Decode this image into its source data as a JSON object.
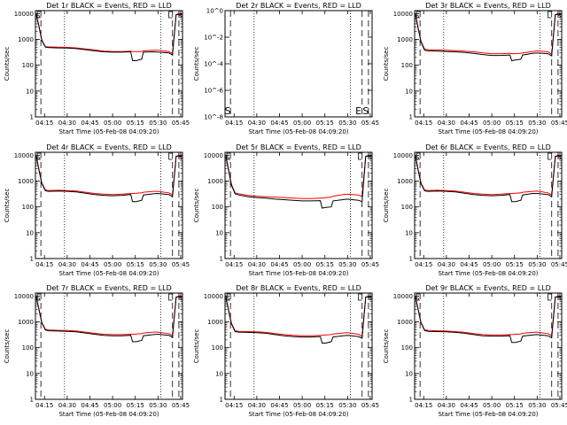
{
  "xlabel": "Start Time (05-Feb-08 04:09:20)",
  "ylabel": "Counts/sec",
  "series_legend": {
    "black": "Events",
    "red": "LLD"
  },
  "colors": {
    "events": "#000000",
    "lld": "#ff0000",
    "axis": "#000000"
  },
  "annotation_labels": {
    "S": "S",
    "E": "E"
  },
  "x_range_min": [
    4.15,
    5.77
  ],
  "x_tick_labels": [
    "04:15",
    "04:30",
    "04:45",
    "05:00",
    "05:15",
    "05:30",
    "05:45"
  ],
  "x_tick_values_min": [
    4.25,
    4.5,
    4.75,
    5.0,
    5.25,
    5.5,
    5.75
  ],
  "y_tick_labels_log": [
    "1",
    "10",
    "100",
    "1000",
    "10000"
  ],
  "y_tick_values_log": [
    1,
    10,
    100,
    1000,
    10000
  ],
  "y_tick_labels_zero": [
    "10^-8",
    "10^-6",
    "10^-4",
    "10^-2",
    "10^0"
  ],
  "y_tick_values_zero": [
    1e-08,
    1e-06,
    0.0001,
    0.01,
    1
  ],
  "marker_lines_min": {
    "dashed": [
      4.21,
      5.66,
      5.73
    ],
    "dotted": [
      4.47,
      5.53
    ]
  },
  "chart_data": [
    {
      "type": "line",
      "title": "Det 1r BLACK = Events, RED = LLD",
      "ylim": [
        1,
        13000
      ],
      "scale": "log",
      "x": [
        4.16,
        4.19,
        4.22,
        4.26,
        4.3,
        4.4,
        4.5,
        4.6,
        4.7,
        4.8,
        4.9,
        5.0,
        5.1,
        5.2,
        5.22,
        5.26,
        5.32,
        5.34,
        5.45,
        5.5,
        5.62,
        5.66,
        5.7,
        5.73,
        5.76
      ],
      "series": [
        {
          "name": "Events",
          "values": [
            9000,
            3000,
            900,
            500,
            480,
            470,
            460,
            440,
            400,
            360,
            330,
            320,
            320,
            330,
            150,
            150,
            170,
            320,
            330,
            320,
            300,
            250,
            9000,
            9500,
            9000
          ]
        },
        {
          "name": "LLD",
          "values": [
            9200,
            3200,
            950,
            520,
            510,
            500,
            490,
            470,
            430,
            390,
            350,
            340,
            340,
            350,
            340,
            340,
            340,
            360,
            380,
            380,
            340,
            280,
            9200,
            9800,
            9200
          ]
        }
      ]
    },
    {
      "type": "line",
      "title": "Det 2r BLACK = Events, RED = LLD",
      "ylim": [
        1e-08,
        1
      ],
      "scale": "log",
      "x": [],
      "series": [
        {
          "name": "Events",
          "values": []
        },
        {
          "name": "LLD",
          "values": []
        }
      ]
    },
    {
      "type": "line",
      "title": "Det 3r BLACK = Events, RED = LLD",
      "ylim": [
        1,
        13000
      ],
      "scale": "log",
      "x": [
        4.16,
        4.19,
        4.22,
        4.26,
        4.3,
        4.4,
        4.5,
        4.6,
        4.7,
        4.8,
        4.9,
        5.0,
        5.1,
        5.2,
        5.22,
        5.26,
        5.32,
        5.34,
        5.45,
        5.5,
        5.62,
        5.66,
        5.7,
        5.73,
        5.76
      ],
      "series": [
        {
          "name": "Events",
          "values": [
            9000,
            2500,
            800,
            380,
            360,
            350,
            340,
            330,
            310,
            290,
            260,
            240,
            240,
            250,
            150,
            160,
            170,
            250,
            290,
            300,
            280,
            230,
            9000,
            9500,
            9000
          ]
        },
        {
          "name": "LLD",
          "values": [
            9200,
            2700,
            850,
            420,
            400,
            390,
            380,
            370,
            350,
            330,
            300,
            280,
            280,
            290,
            280,
            280,
            290,
            300,
            340,
            360,
            330,
            270,
            9200,
            9800,
            9200
          ]
        }
      ]
    },
    {
      "type": "line",
      "title": "Det 4r BLACK = Events, RED = LLD",
      "ylim": [
        1,
        13000
      ],
      "scale": "log",
      "x": [
        4.16,
        4.19,
        4.22,
        4.26,
        4.3,
        4.4,
        4.5,
        4.6,
        4.7,
        4.8,
        4.9,
        5.0,
        5.1,
        5.2,
        5.22,
        5.26,
        5.32,
        5.34,
        5.45,
        5.5,
        5.62,
        5.66,
        5.7,
        5.73,
        5.76
      ],
      "series": [
        {
          "name": "Events",
          "values": [
            9000,
            2500,
            800,
            420,
            400,
            410,
            400,
            380,
            340,
            300,
            280,
            270,
            280,
            300,
            160,
            160,
            180,
            290,
            320,
            330,
            300,
            250,
            9000,
            9500,
            9000
          ]
        },
        {
          "name": "LLD",
          "values": [
            9200,
            2700,
            850,
            450,
            430,
            440,
            430,
            410,
            370,
            330,
            310,
            300,
            310,
            330,
            330,
            340,
            350,
            370,
            400,
            400,
            350,
            290,
            9200,
            9800,
            9200
          ]
        }
      ]
    },
    {
      "type": "line",
      "title": "Det 5r BLACK = Events, RED = LLD",
      "ylim": [
        1,
        13000
      ],
      "scale": "log",
      "x": [
        4.16,
        4.19,
        4.22,
        4.26,
        4.3,
        4.4,
        4.5,
        4.6,
        4.7,
        4.8,
        4.9,
        5.0,
        5.1,
        5.2,
        5.22,
        5.26,
        5.32,
        5.34,
        5.45,
        5.5,
        5.62,
        5.66,
        5.7,
        5.73,
        5.76
      ],
      "series": [
        {
          "name": "Events",
          "values": [
            9000,
            2500,
            700,
            320,
            290,
            250,
            230,
            220,
            200,
            190,
            180,
            170,
            170,
            175,
            90,
            95,
            100,
            170,
            190,
            200,
            180,
            160,
            9000,
            9500,
            9000
          ]
        },
        {
          "name": "LLD",
          "values": [
            9200,
            2700,
            750,
            350,
            320,
            280,
            260,
            250,
            240,
            230,
            220,
            210,
            210,
            220,
            220,
            230,
            240,
            260,
            300,
            310,
            290,
            250,
            9200,
            9800,
            9200
          ]
        }
      ]
    },
    {
      "type": "line",
      "title": "Det 6r BLACK = Events, RED = LLD",
      "ylim": [
        1,
        13000
      ],
      "scale": "log",
      "x": [
        4.16,
        4.19,
        4.22,
        4.26,
        4.3,
        4.4,
        4.5,
        4.6,
        4.7,
        4.8,
        4.9,
        5.0,
        5.1,
        5.2,
        5.22,
        5.26,
        5.32,
        5.34,
        5.45,
        5.5,
        5.62,
        5.66,
        5.7,
        5.73,
        5.76
      ],
      "series": [
        {
          "name": "Events",
          "values": [
            9000,
            2500,
            800,
            420,
            400,
            410,
            400,
            380,
            340,
            300,
            280,
            270,
            280,
            300,
            160,
            160,
            180,
            290,
            330,
            330,
            300,
            250,
            9000,
            9500,
            9000
          ]
        },
        {
          "name": "LLD",
          "values": [
            9200,
            2700,
            850,
            450,
            430,
            440,
            430,
            410,
            370,
            330,
            310,
            300,
            310,
            330,
            330,
            340,
            350,
            370,
            400,
            410,
            350,
            290,
            9200,
            9800,
            9200
          ]
        }
      ]
    },
    {
      "type": "line",
      "title": "Det 7r BLACK = Events, RED = LLD",
      "ylim": [
        1,
        13000
      ],
      "scale": "log",
      "x": [
        4.16,
        4.19,
        4.22,
        4.26,
        4.3,
        4.4,
        4.5,
        4.6,
        4.7,
        4.8,
        4.9,
        5.0,
        5.1,
        5.2,
        5.22,
        5.26,
        5.32,
        5.34,
        5.45,
        5.5,
        5.62,
        5.66,
        5.7,
        5.73,
        5.76
      ],
      "series": [
        {
          "name": "Events",
          "values": [
            9000,
            2800,
            900,
            480,
            450,
            440,
            430,
            410,
            370,
            330,
            300,
            290,
            290,
            300,
            170,
            170,
            190,
            290,
            320,
            330,
            300,
            250,
            9000,
            9500,
            9000
          ]
        },
        {
          "name": "LLD",
          "values": [
            9200,
            3000,
            950,
            510,
            480,
            470,
            460,
            440,
            400,
            360,
            330,
            320,
            320,
            330,
            330,
            340,
            350,
            370,
            400,
            400,
            350,
            290,
            9200,
            9800,
            9200
          ]
        }
      ]
    },
    {
      "type": "line",
      "title": "Det 8r BLACK = Events, RED = LLD",
      "ylim": [
        1,
        13000
      ],
      "scale": "log",
      "x": [
        4.16,
        4.19,
        4.22,
        4.26,
        4.3,
        4.4,
        4.5,
        4.6,
        4.7,
        4.8,
        4.9,
        5.0,
        5.1,
        5.2,
        5.22,
        5.26,
        5.32,
        5.34,
        5.45,
        5.5,
        5.62,
        5.66,
        5.7,
        5.73,
        5.76
      ],
      "series": [
        {
          "name": "Events",
          "values": [
            9000,
            2600,
            850,
            420,
            400,
            390,
            380,
            360,
            320,
            290,
            270,
            260,
            260,
            270,
            150,
            150,
            170,
            260,
            290,
            300,
            270,
            230,
            9000,
            9500,
            9000
          ]
        },
        {
          "name": "LLD",
          "values": [
            9200,
            2800,
            900,
            450,
            430,
            420,
            410,
            390,
            350,
            320,
            300,
            290,
            290,
            300,
            300,
            310,
            320,
            340,
            370,
            380,
            330,
            270,
            9200,
            9800,
            9200
          ]
        }
      ]
    },
    {
      "type": "line",
      "title": "Det 9r BLACK = Events, RED = LLD",
      "ylim": [
        1,
        13000
      ],
      "scale": "log",
      "x": [
        4.16,
        4.19,
        4.22,
        4.26,
        4.3,
        4.4,
        4.5,
        4.6,
        4.7,
        4.8,
        4.9,
        5.0,
        5.1,
        5.2,
        5.22,
        5.26,
        5.32,
        5.34,
        5.45,
        5.5,
        5.62,
        5.66,
        5.7,
        5.73,
        5.76
      ],
      "series": [
        {
          "name": "Events",
          "values": [
            9000,
            2800,
            900,
            460,
            430,
            420,
            410,
            390,
            360,
            320,
            290,
            280,
            280,
            290,
            160,
            160,
            180,
            280,
            310,
            320,
            290,
            240,
            9000,
            9500,
            9000
          ]
        },
        {
          "name": "LLD",
          "values": [
            9200,
            3000,
            950,
            490,
            460,
            450,
            440,
            420,
            390,
            350,
            320,
            310,
            310,
            320,
            320,
            330,
            340,
            360,
            390,
            400,
            350,
            290,
            9200,
            9800,
            9200
          ]
        }
      ]
    }
  ]
}
